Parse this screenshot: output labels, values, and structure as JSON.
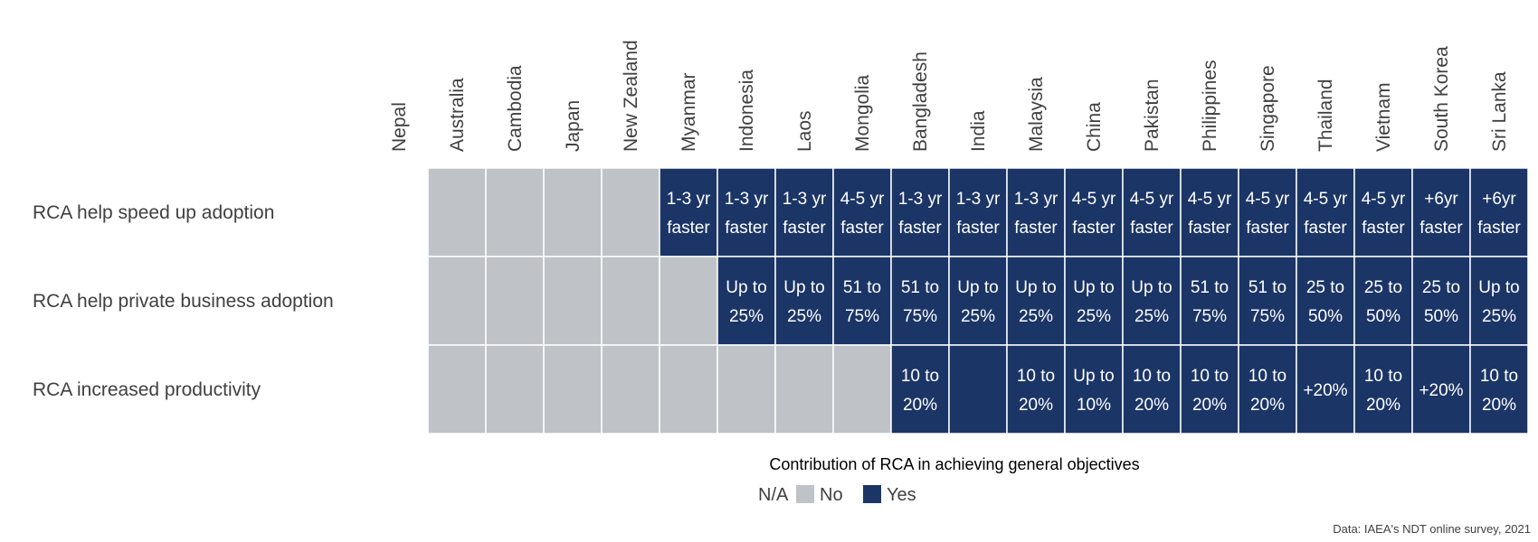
{
  "chart_data": {
    "type": "heatmap",
    "title": "",
    "columns": [
      "Nepal",
      "Australia",
      "Cambodia",
      "Japan",
      "New Zealand",
      "Myanmar",
      "Indonesia",
      "Laos",
      "Mongolia",
      "Bangladesh",
      "India",
      "Malaysia",
      "China",
      "Pakistan",
      "Philippines",
      "Singapore",
      "Thailand",
      "Vietnam",
      "South Korea",
      "Sri Lanka"
    ],
    "rows": [
      {
        "label": "RCA help speed up adoption",
        "cells": [
          {
            "status": "N/A",
            "text": ""
          },
          {
            "status": "No",
            "text": ""
          },
          {
            "status": "No",
            "text": ""
          },
          {
            "status": "No",
            "text": ""
          },
          {
            "status": "No",
            "text": ""
          },
          {
            "status": "Yes",
            "text": "1-3 yr\nfaster"
          },
          {
            "status": "Yes",
            "text": "1-3 yr\nfaster"
          },
          {
            "status": "Yes",
            "text": "1-3 yr\nfaster"
          },
          {
            "status": "Yes",
            "text": "4-5 yr\nfaster"
          },
          {
            "status": "Yes",
            "text": "1-3 yr\nfaster"
          },
          {
            "status": "Yes",
            "text": "1-3 yr\nfaster"
          },
          {
            "status": "Yes",
            "text": "1-3 yr\nfaster"
          },
          {
            "status": "Yes",
            "text": "4-5 yr\nfaster"
          },
          {
            "status": "Yes",
            "text": "4-5 yr\nfaster"
          },
          {
            "status": "Yes",
            "text": "4-5 yr\nfaster"
          },
          {
            "status": "Yes",
            "text": "4-5 yr\nfaster"
          },
          {
            "status": "Yes",
            "text": "4-5 yr\nfaster"
          },
          {
            "status": "Yes",
            "text": "4-5 yr\nfaster"
          },
          {
            "status": "Yes",
            "text": "+6yr\nfaster"
          },
          {
            "status": "Yes",
            "text": "+6yr\nfaster"
          }
        ]
      },
      {
        "label": "RCA help private business adoption",
        "cells": [
          {
            "status": "N/A",
            "text": ""
          },
          {
            "status": "No",
            "text": ""
          },
          {
            "status": "No",
            "text": ""
          },
          {
            "status": "No",
            "text": ""
          },
          {
            "status": "No",
            "text": ""
          },
          {
            "status": "No",
            "text": ""
          },
          {
            "status": "Yes",
            "text": "Up to\n25%"
          },
          {
            "status": "Yes",
            "text": "Up to\n25%"
          },
          {
            "status": "Yes",
            "text": "51 to\n75%"
          },
          {
            "status": "Yes",
            "text": "51 to\n75%"
          },
          {
            "status": "Yes",
            "text": "Up to\n25%"
          },
          {
            "status": "Yes",
            "text": "Up to\n25%"
          },
          {
            "status": "Yes",
            "text": "Up to\n25%"
          },
          {
            "status": "Yes",
            "text": "Up to\n25%"
          },
          {
            "status": "Yes",
            "text": "51 to\n75%"
          },
          {
            "status": "Yes",
            "text": "51 to\n75%"
          },
          {
            "status": "Yes",
            "text": "25 to\n50%"
          },
          {
            "status": "Yes",
            "text": "25 to\n50%"
          },
          {
            "status": "Yes",
            "text": "25 to\n50%"
          },
          {
            "status": "Yes",
            "text": "Up to\n25%"
          }
        ]
      },
      {
        "label": "RCA increased productivity",
        "cells": [
          {
            "status": "N/A",
            "text": ""
          },
          {
            "status": "No",
            "text": ""
          },
          {
            "status": "No",
            "text": ""
          },
          {
            "status": "No",
            "text": ""
          },
          {
            "status": "No",
            "text": ""
          },
          {
            "status": "No",
            "text": ""
          },
          {
            "status": "No",
            "text": ""
          },
          {
            "status": "No",
            "text": ""
          },
          {
            "status": "No",
            "text": ""
          },
          {
            "status": "Yes",
            "text": "10 to\n20%"
          },
          {
            "status": "Yes",
            "text": ""
          },
          {
            "status": "Yes",
            "text": "10 to\n20%"
          },
          {
            "status": "Yes",
            "text": "Up to\n10%"
          },
          {
            "status": "Yes",
            "text": "10 to\n20%"
          },
          {
            "status": "Yes",
            "text": "10 to\n20%"
          },
          {
            "status": "Yes",
            "text": "10 to\n20%"
          },
          {
            "status": "Yes",
            "text": "+20%"
          },
          {
            "status": "Yes",
            "text": "10 to\n20%"
          },
          {
            "status": "Yes",
            "text": "+20%"
          },
          {
            "status": "Yes",
            "text": "10 to\n20%"
          }
        ]
      }
    ],
    "legend": {
      "title": "Contribution of RCA in achieving general objectives",
      "items": [
        {
          "label": "N/A",
          "color": "#ffffff"
        },
        {
          "label": "No",
          "color": "#bfc3c7"
        },
        {
          "label": "Yes",
          "color": "#1b3567"
        }
      ],
      "placement": "bottom-center"
    },
    "source": "Data: IAEA's NDT online survey, 2021"
  },
  "colors": {
    "na": "#ffffff",
    "no": "#bfc3c7",
    "yes": "#1b3567",
    "grid_line": "#ffffff"
  }
}
